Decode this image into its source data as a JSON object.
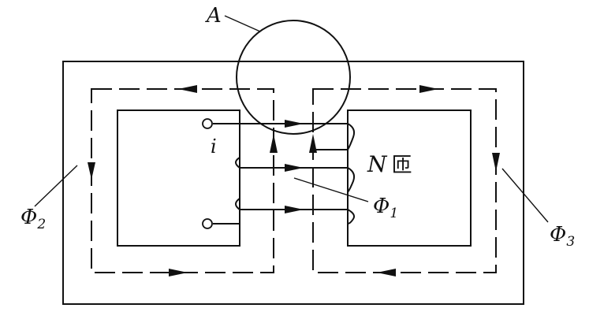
{
  "labels": {
    "meter": "A",
    "current": "i",
    "turns_symbol": "N",
    "turns_unit": "匝",
    "phi1_main": "Φ",
    "phi1_sub": "1",
    "phi2_main": "Φ",
    "phi2_sub": "2",
    "phi3_main": "Φ",
    "phi3_sub": "3"
  }
}
